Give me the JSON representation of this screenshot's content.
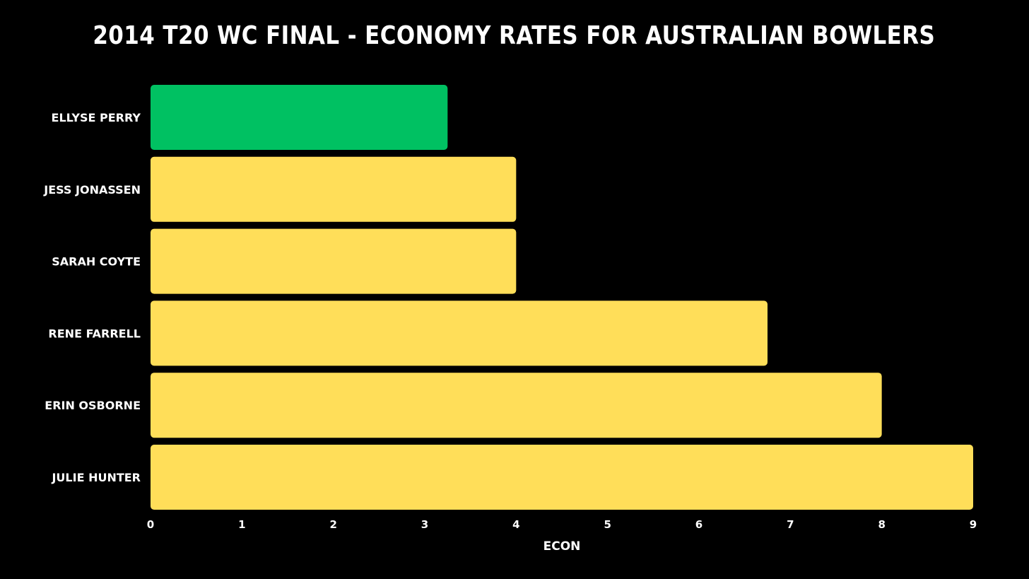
{
  "chart_data": {
    "type": "bar",
    "orientation": "horizontal",
    "title": "2014 T20 WC FINAL - ECONOMY RATES FOR AUSTRALIAN BOWLERS",
    "xlabel": "ECON",
    "ylabel": "",
    "categories": [
      "ELLYSE PERRY",
      "JESS JONASSEN",
      "SARAH COYTE",
      "RENE FARRELL",
      "ERIN OSBORNE",
      "JULIE HUNTER"
    ],
    "values": [
      3.25,
      4.0,
      4.0,
      6.75,
      8.0,
      9.0
    ],
    "bar_colors": [
      "#00c162",
      "#ffde59",
      "#ffde59",
      "#ffde59",
      "#ffde59",
      "#ffde59"
    ],
    "xlim": [
      0,
      9
    ],
    "xticks": [
      "0",
      "1",
      "2",
      "3",
      "4",
      "5",
      "6",
      "7",
      "8",
      "9"
    ],
    "grid": false,
    "legend": "none",
    "background": "#000000",
    "text_color": "#ffffff"
  }
}
